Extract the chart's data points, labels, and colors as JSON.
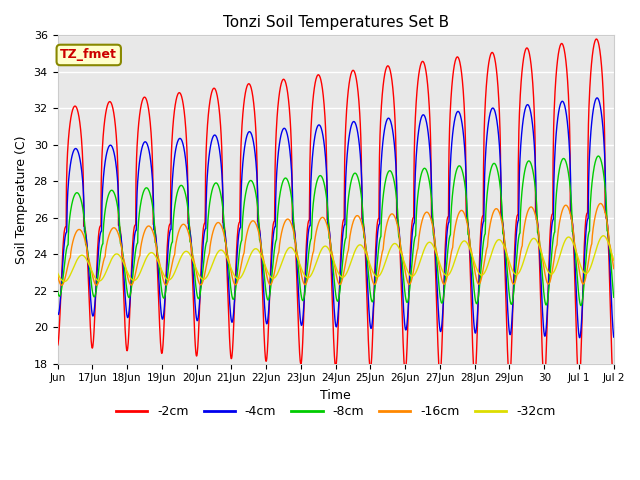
{
  "title": "Tonzi Soil Temperatures Set B",
  "xlabel": "Time",
  "ylabel": "Soil Temperature (C)",
  "ylim": [
    18,
    36
  ],
  "xlim_days": [
    0,
    16
  ],
  "annotation_text": "TZ_fmet",
  "annotation_box_color": "#ffffcc",
  "annotation_text_color": "#cc0000",
  "annotation_edge_color": "#888800",
  "background_color": "#e8e8e8",
  "series": [
    {
      "label": "-2cm",
      "color": "#ff0000",
      "amplitude": 6.5,
      "phase": 0.0,
      "mean": 25.5,
      "sharpness": 3.0
    },
    {
      "label": "-4cm",
      "color": "#0000ee",
      "amplitude": 4.5,
      "phase": 0.12,
      "mean": 25.2,
      "sharpness": 2.5
    },
    {
      "label": "-8cm",
      "color": "#00cc00",
      "amplitude": 2.8,
      "phase": 0.35,
      "mean": 24.5,
      "sharpness": 2.0
    },
    {
      "label": "-16cm",
      "color": "#ff8800",
      "amplitude": 1.5,
      "phase": 0.75,
      "mean": 23.8,
      "sharpness": 1.5
    },
    {
      "label": "-32cm",
      "color": "#dddd00",
      "amplitude": 0.7,
      "phase": 1.25,
      "mean": 23.2,
      "sharpness": 1.0
    }
  ],
  "yticks": [
    18,
    20,
    22,
    24,
    26,
    28,
    30,
    32,
    34,
    36
  ],
  "tick_labels": [
    "Jun",
    "17Jun",
    "18Jun",
    "19Jun",
    "20Jun",
    "21Jun",
    "22Jun",
    "23Jun",
    "24Jun",
    "25Jun",
    "26Jun",
    "27Jun",
    "28Jun",
    "29Jun",
    "30",
    "Jul 1",
    "Jul 2"
  ],
  "tick_positions": [
    0,
    1,
    2,
    3,
    4,
    5,
    6,
    7,
    8,
    9,
    10,
    11,
    12,
    13,
    14,
    15,
    16
  ]
}
